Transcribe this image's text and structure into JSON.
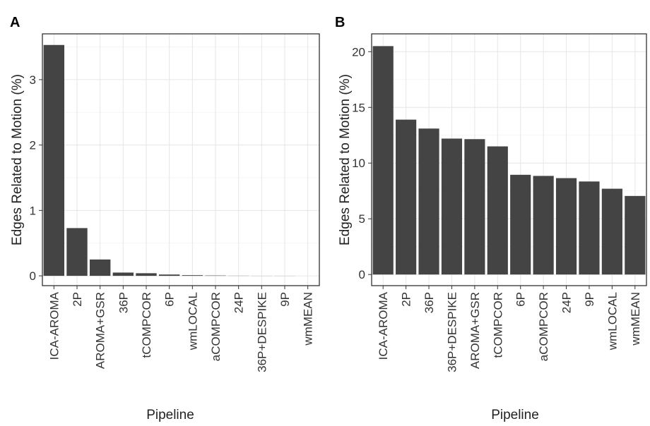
{
  "chart_data": [
    {
      "panel": "A",
      "type": "bar",
      "xlabel": "Pipeline",
      "ylabel": "Edges Related to Motion (%)",
      "categories": [
        "ICA-AROMA",
        "2P",
        "AROMA+GSR",
        "36P",
        "tCOMPCOR",
        "6P",
        "wmLOCAL",
        "aCOMPCOR",
        "24P",
        "36P+DESPIKE",
        "9P",
        "wmMEAN"
      ],
      "values": [
        3.53,
        0.73,
        0.25,
        0.05,
        0.04,
        0.02,
        0.01,
        0.005,
        0.002,
        0.001,
        0.001,
        0.0
      ],
      "yticks": [
        0,
        1,
        2,
        3
      ],
      "ylim": [
        -0.15,
        3.7
      ],
      "grid": true,
      "bar_color": "#444444"
    },
    {
      "panel": "B",
      "type": "bar",
      "xlabel": "Pipeline",
      "ylabel": "Edges Related to Motion (%)",
      "categories": [
        "ICA-AROMA",
        "2P",
        "36P",
        "36P+DESPIKE",
        "AROMA+GSR",
        "tCOMPCOR",
        "6P",
        "aCOMPCOR",
        "24P",
        "9P",
        "wmLOCAL",
        "wmMEAN"
      ],
      "values": [
        20.5,
        13.9,
        13.1,
        12.2,
        12.15,
        11.5,
        8.95,
        8.85,
        8.65,
        8.35,
        7.7,
        7.05
      ],
      "yticks": [
        0,
        5,
        10,
        15,
        20
      ],
      "ylim": [
        -1.0,
        21.6
      ],
      "grid": true,
      "bar_color": "#444444"
    }
  ]
}
